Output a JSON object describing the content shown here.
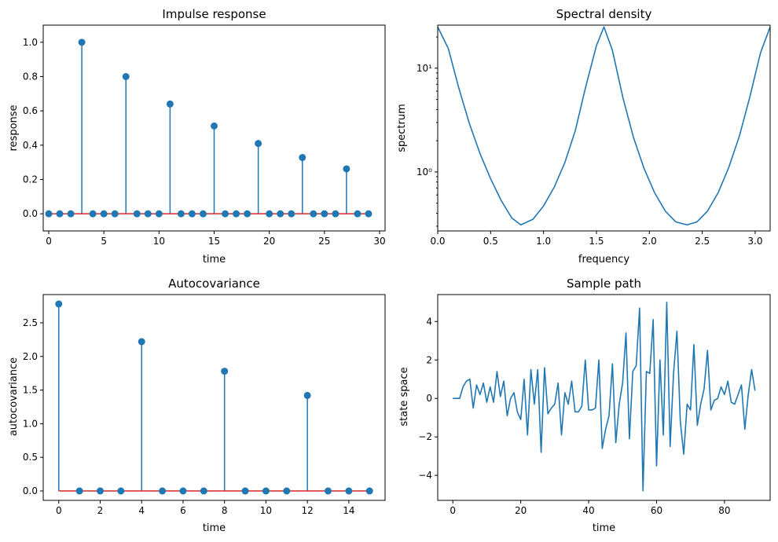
{
  "chart_data": [
    {
      "type": "stem",
      "title": "Impulse response",
      "xlabel": "time",
      "ylabel": "response",
      "xlim": [
        -0.5,
        30.5
      ],
      "ylim": [
        -0.1,
        1.1
      ],
      "xticks": [
        0,
        5,
        10,
        15,
        20,
        25,
        30
      ],
      "xtick_labels": [
        "0",
        "5",
        "10",
        "15",
        "20",
        "25",
        "30"
      ],
      "yticks": [
        0.0,
        0.2,
        0.4,
        0.6,
        0.8,
        1.0
      ],
      "ytick_labels": [
        "0.0",
        "0.2",
        "0.4",
        "0.6",
        "0.8",
        "1.0"
      ],
      "x": [
        0,
        1,
        2,
        3,
        4,
        5,
        6,
        7,
        8,
        9,
        10,
        11,
        12,
        13,
        14,
        15,
        16,
        17,
        18,
        19,
        20,
        21,
        22,
        23,
        24,
        25,
        26,
        27,
        28,
        29
      ],
      "y": [
        0,
        0,
        0,
        1.0,
        0,
        0,
        0,
        0.8,
        0,
        0,
        0,
        0.64,
        0,
        0,
        0,
        0.512,
        0,
        0,
        0,
        0.41,
        0,
        0,
        0,
        0.328,
        0,
        0,
        0,
        0.262,
        0,
        0
      ],
      "colors": {
        "stem": "#1f77b4",
        "baseline": "#d62728"
      }
    },
    {
      "type": "line",
      "title": "Spectral density",
      "xlabel": "frequency",
      "ylabel": "spectrum",
      "yscale": "log",
      "xlim": [
        0,
        3.1416
      ],
      "ylim": [
        0.27,
        26
      ],
      "xticks": [
        0.0,
        0.5,
        1.0,
        1.5,
        2.0,
        2.5,
        3.0
      ],
      "xtick_labels": [
        "0.0",
        "0.5",
        "1.0",
        "1.5",
        "2.0",
        "2.5",
        "3.0"
      ],
      "yticks": [
        1,
        10
      ],
      "ytick_labels": [
        "10⁰",
        "10¹"
      ],
      "x": [
        0,
        0.1,
        0.2,
        0.3,
        0.4,
        0.5,
        0.6,
        0.7,
        0.785,
        0.9,
        1.0,
        1.1,
        1.2,
        1.3,
        1.4,
        1.5,
        1.5708,
        1.65,
        1.75,
        1.85,
        1.95,
        2.05,
        2.15,
        2.25,
        2.356,
        2.45,
        2.55,
        2.65,
        2.75,
        2.85,
        2.95,
        3.05,
        3.1416
      ],
      "y": [
        25,
        15.5,
        6.4,
        2.91,
        1.5,
        0.86,
        0.53,
        0.36,
        0.309,
        0.35,
        0.47,
        0.71,
        1.22,
        2.5,
        6.7,
        16.5,
        25,
        15,
        5.2,
        2.15,
        1.08,
        0.63,
        0.42,
        0.33,
        0.309,
        0.33,
        0.42,
        0.63,
        1.1,
        2.2,
        5.3,
        14,
        25
      ],
      "colors": {
        "line": "#1f77b4"
      }
    },
    {
      "type": "stem",
      "title": "Autocovariance",
      "xlabel": "time",
      "ylabel": "autocovariance",
      "xlim": [
        -0.75,
        15.75
      ],
      "ylim": [
        -0.14,
        2.92
      ],
      "xticks": [
        0,
        2,
        4,
        6,
        8,
        10,
        12,
        14
      ],
      "xtick_labels": [
        "0",
        "2",
        "4",
        "6",
        "8",
        "10",
        "12",
        "14"
      ],
      "yticks": [
        0.0,
        0.5,
        1.0,
        1.5,
        2.0,
        2.5
      ],
      "ytick_labels": [
        "0.0",
        "0.5",
        "1.0",
        "1.5",
        "2.0",
        "2.5"
      ],
      "x": [
        0,
        1,
        2,
        3,
        4,
        5,
        6,
        7,
        8,
        9,
        10,
        11,
        12,
        13,
        14,
        15
      ],
      "y": [
        2.78,
        0,
        0,
        0,
        2.22,
        0,
        0,
        0,
        1.78,
        0,
        0,
        0,
        1.42,
        0,
        0,
        0
      ],
      "colors": {
        "stem": "#1f77b4",
        "baseline": "#d62728"
      }
    },
    {
      "type": "line",
      "title": "Sample path",
      "xlabel": "time",
      "ylabel": "state space",
      "xlim": [
        -4.45,
        93.45
      ],
      "ylim": [
        -5.3,
        5.4
      ],
      "xticks": [
        0,
        20,
        40,
        60,
        80
      ],
      "xtick_labels": [
        "0",
        "20",
        "40",
        "60",
        "80"
      ],
      "yticks": [
        -4,
        -2,
        0,
        2,
        4
      ],
      "ytick_labels": [
        "−4",
        "−2",
        "0",
        "2",
        "4"
      ],
      "x": [
        0,
        1,
        2,
        3,
        4,
        5,
        6,
        7,
        8,
        9,
        10,
        11,
        12,
        13,
        14,
        15,
        16,
        17,
        18,
        19,
        20,
        21,
        22,
        23,
        24,
        25,
        26,
        27,
        28,
        29,
        30,
        31,
        32,
        33,
        34,
        35,
        36,
        37,
        38,
        39,
        40,
        41,
        42,
        43,
        44,
        45,
        46,
        47,
        48,
        49,
        50,
        51,
        52,
        53,
        54,
        55,
        56,
        57,
        58,
        59,
        60,
        61,
        62,
        63,
        64,
        65,
        66,
        67,
        68,
        69,
        70,
        71,
        72,
        73,
        74,
        75,
        76,
        77,
        78,
        79,
        80,
        81,
        82,
        83,
        84,
        85,
        86,
        87,
        88,
        89
      ],
      "y": [
        0,
        0,
        0,
        0.6,
        0.9,
        1.0,
        -0.5,
        0.7,
        0.2,
        0.8,
        -0.2,
        0.6,
        -0.2,
        1.4,
        0.1,
        0.9,
        -0.9,
        0,
        0.3,
        -0.7,
        -1.1,
        1.0,
        -1.9,
        1.5,
        -0.3,
        1.5,
        -2.8,
        1.6,
        -0.8,
        -0.5,
        -0.3,
        0.8,
        -1.9,
        0.3,
        -0.3,
        0.9,
        -0.7,
        -0.7,
        -0.4,
        2.0,
        -0.6,
        -0.6,
        -0.5,
        2.0,
        -2.6,
        -1.6,
        -0.9,
        1.8,
        -2.3,
        -0.3,
        0.8,
        3.4,
        -2.1,
        1.4,
        1.7,
        4.7,
        -4.8,
        1.4,
        1.3,
        4.1,
        -3.5,
        2.0,
        -1.9,
        5.0,
        -2.5,
        1.3,
        3.5,
        -1.2,
        -2.9,
        -0.3,
        -0.6,
        2.8,
        -1.4,
        -0.3,
        0.5,
        2.5,
        -0.6,
        -0.1,
        0,
        0.6,
        0.2,
        0.9,
        -0.2,
        -0.3,
        0.2,
        0.7,
        -1.6,
        0.2,
        1.5,
        0.4
      ],
      "colors": {
        "line": "#1f77b4"
      }
    }
  ]
}
